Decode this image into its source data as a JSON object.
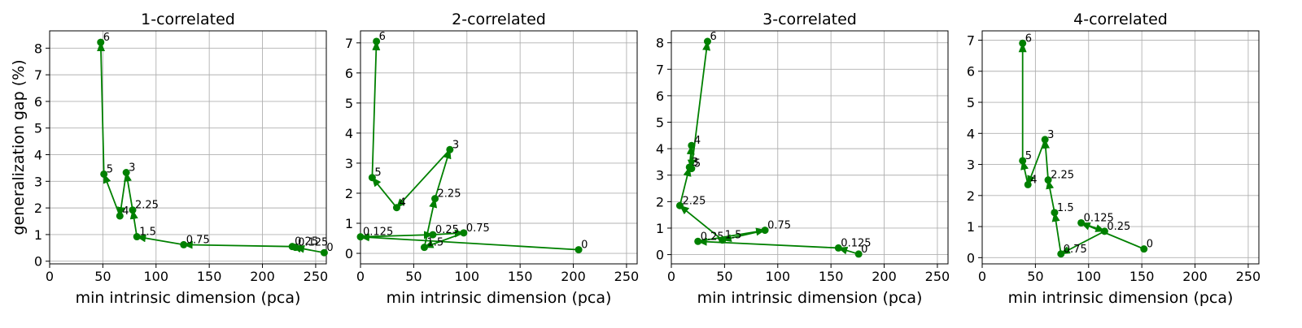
{
  "figure": {
    "ylabel": "generalization gap (%)",
    "line_color": "#008000"
  },
  "chart_data": [
    {
      "type": "line",
      "title": "1-correlated",
      "xlabel": "min intrinsic dimension (pca)",
      "ylabel": "generalization gap (%)",
      "xlim": [
        0,
        260
      ],
      "ylim": [
        -0.1,
        8.65
      ],
      "xticks": [
        "0",
        "50",
        "100",
        "150",
        "200",
        "250"
      ],
      "yticks": [
        "0",
        "1",
        "2",
        "3",
        "4",
        "5",
        "6",
        "7",
        "8"
      ],
      "grid": true,
      "series": [
        {
          "x": [
            258,
            231,
            228,
            126,
            82,
            78,
            72,
            66,
            51,
            48
          ],
          "y": [
            0.32,
            0.52,
            0.55,
            0.62,
            0.92,
            1.92,
            3.33,
            1.7,
            3.27,
            8.22
          ],
          "labels": [
            "0",
            "0.125",
            "0.25",
            "0.75",
            "1.5",
            "2.25",
            "3",
            "4",
            "5",
            "6"
          ]
        }
      ]
    },
    {
      "type": "line",
      "title": "2-correlated",
      "xlabel": "min intrinsic dimension (pca)",
      "ylabel": "",
      "xlim": [
        0,
        260
      ],
      "ylim": [
        -0.35,
        7.4
      ],
      "xticks": [
        "0",
        "50",
        "100",
        "150",
        "200",
        "250"
      ],
      "yticks": [
        "0",
        "1",
        "2",
        "3",
        "4",
        "5",
        "6",
        "7"
      ],
      "grid": true,
      "series": [
        {
          "x": [
            205,
            0,
            68,
            97,
            60,
            70,
            84,
            34,
            11,
            15
          ],
          "y": [
            0.12,
            0.55,
            0.62,
            0.68,
            0.2,
            1.82,
            3.45,
            1.52,
            2.52,
            7.05
          ],
          "labels": [
            "0",
            "0.125",
            "0.25",
            "0.75",
            "1.5",
            "2.25",
            "3",
            "4",
            "5",
            "6"
          ]
        }
      ]
    },
    {
      "type": "line",
      "title": "3-correlated",
      "xlabel": "min intrinsic dimension (pca)",
      "ylabel": "",
      "xlim": [
        0,
        260
      ],
      "ylim": [
        -0.35,
        8.45
      ],
      "xticks": [
        "0",
        "50",
        "100",
        "150",
        "200",
        "250"
      ],
      "yticks": [
        "0",
        "1",
        "2",
        "3",
        "4",
        "5",
        "6",
        "7",
        "8"
      ],
      "grid": true,
      "series": [
        {
          "x": [
            176,
            157,
            25,
            88,
            48,
            8,
            17,
            19,
            19,
            34
          ],
          "y": [
            0.02,
            0.25,
            0.5,
            0.92,
            0.55,
            1.85,
            3.3,
            4.12,
            3.25,
            8.05
          ],
          "labels": [
            "0",
            "0.125",
            "0.25",
            "0.75",
            "1.5",
            "2.25",
            "3",
            "4",
            "5",
            "6"
          ]
        }
      ]
    },
    {
      "type": "line",
      "title": "4-correlated",
      "xlabel": "min intrinsic dimension (pca)",
      "ylabel": "",
      "xlim": [
        0,
        260
      ],
      "ylim": [
        -0.2,
        7.3
      ],
      "xticks": [
        "0",
        "50",
        "100",
        "150",
        "200",
        "250"
      ],
      "yticks": [
        "0",
        "1",
        "2",
        "3",
        "4",
        "5",
        "6",
        "7"
      ],
      "grid": true,
      "series": [
        {
          "x": [
            152,
            93,
            115,
            74,
            68,
            62,
            59,
            43,
            38,
            38
          ],
          "y": [
            0.28,
            1.12,
            0.85,
            0.12,
            1.45,
            2.5,
            3.8,
            2.35,
            3.12,
            6.9
          ],
          "labels": [
            "0",
            "0.125",
            "0.25",
            "0.75",
            "1.5",
            "2.25",
            "3",
            "4",
            "5",
            "6"
          ]
        }
      ]
    }
  ]
}
